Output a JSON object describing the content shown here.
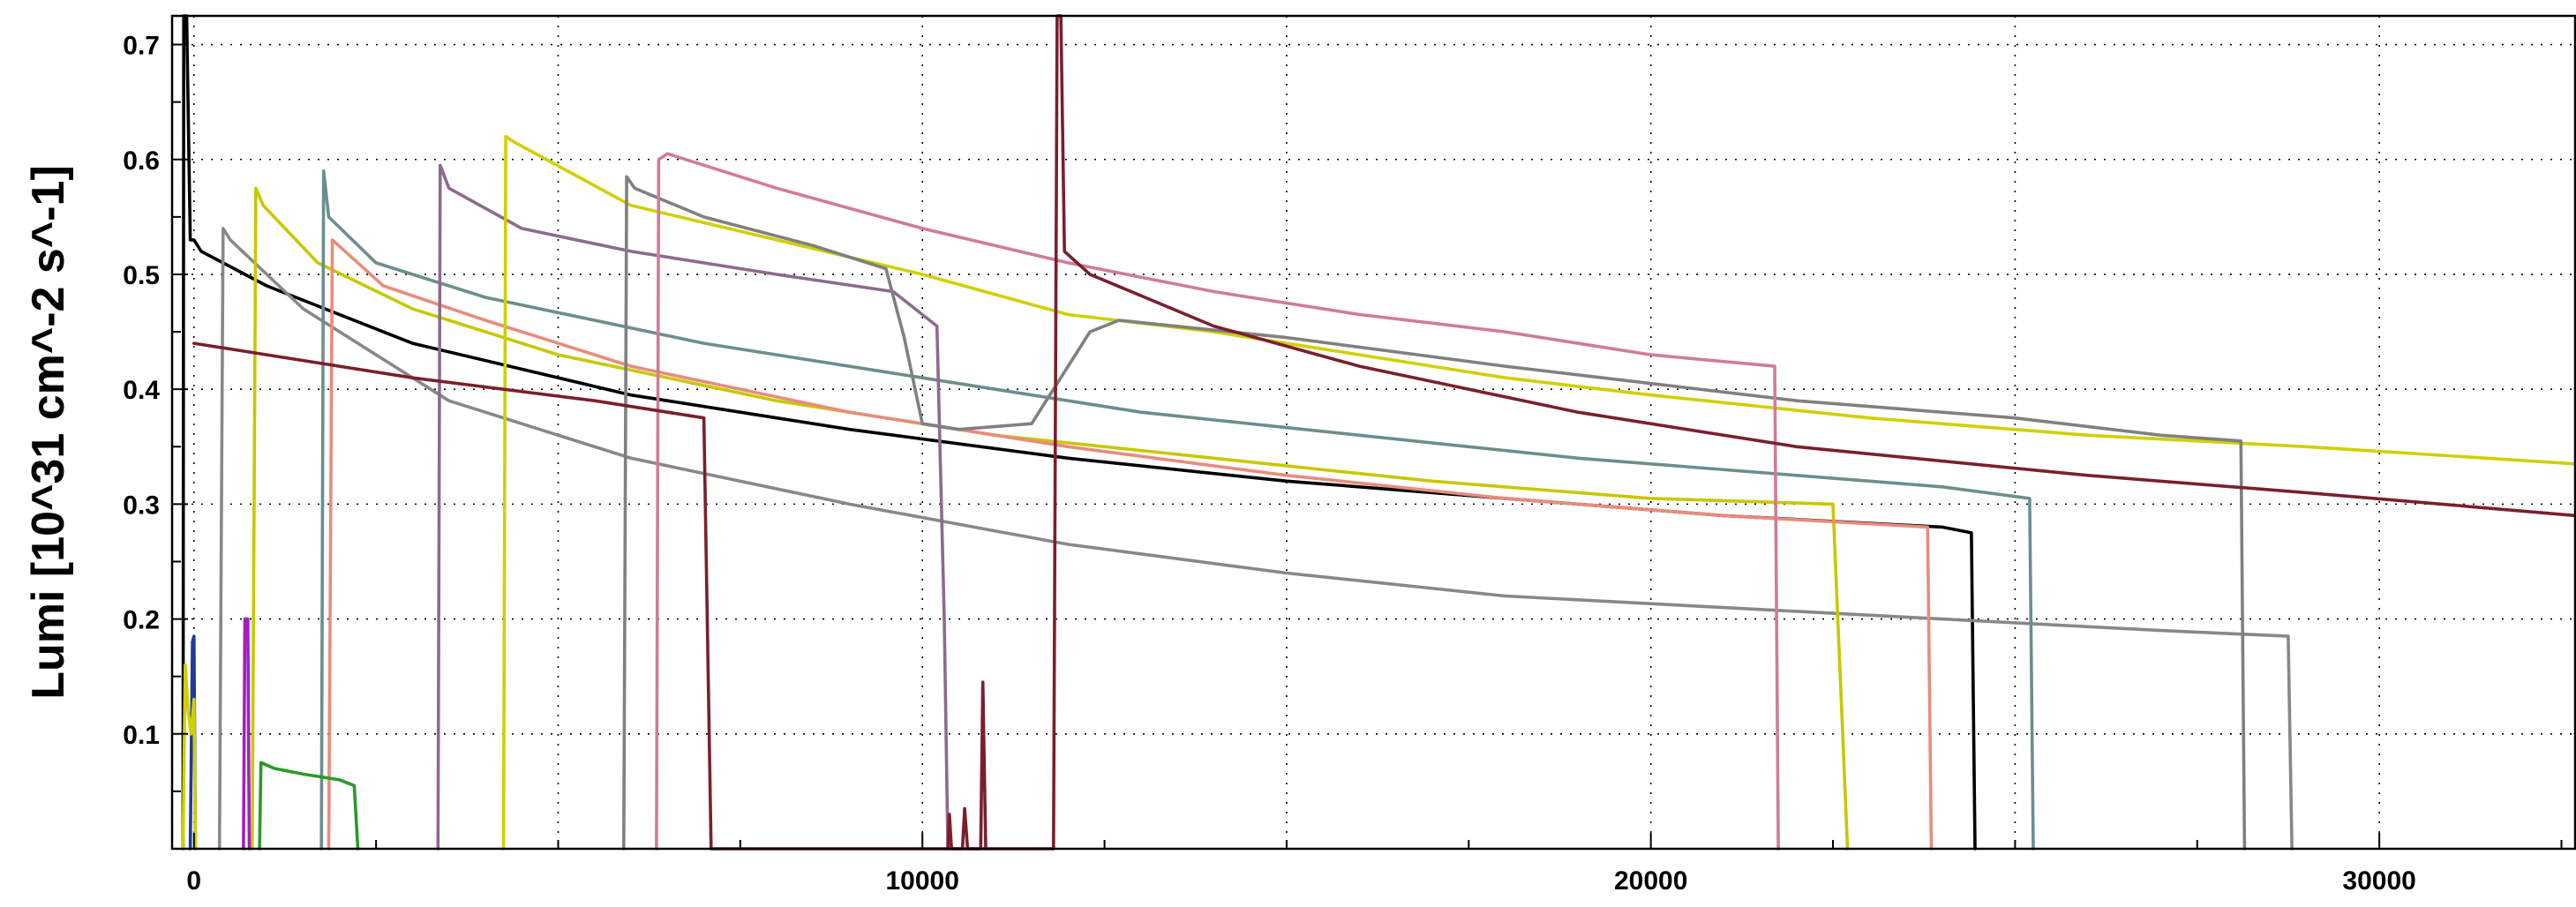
{
  "chart_data": {
    "type": "line",
    "title": "",
    "xlabel": "",
    "ylabel": "Lumi [10^31 cm^-2 s^-1]",
    "xlim": [
      -300,
      32700
    ],
    "ylim": [
      0,
      0.725
    ],
    "grid": true,
    "x_ticks": [
      {
        "value": 0,
        "label": "0"
      },
      {
        "value": 10000,
        "label": "10000"
      },
      {
        "value": 20000,
        "label": "20000"
      },
      {
        "value": 30000,
        "label": "30000"
      }
    ],
    "y_ticks": [
      {
        "value": 0.1,
        "label": "0.1"
      },
      {
        "value": 0.2,
        "label": "0.2"
      },
      {
        "value": 0.3,
        "label": "0.3"
      },
      {
        "value": 0.4,
        "label": "0.4"
      },
      {
        "value": 0.5,
        "label": "0.5"
      },
      {
        "value": 0.6,
        "label": "0.6"
      },
      {
        "value": 0.7,
        "label": "0.7"
      }
    ],
    "series": [
      {
        "color": "#000000",
        "points": [
          [
            -150,
            0
          ],
          [
            -140,
            0.73
          ],
          [
            -100,
            0.73
          ],
          [
            -50,
            0.53
          ],
          [
            0,
            0.53
          ],
          [
            100,
            0.52
          ],
          [
            1000,
            0.49
          ],
          [
            3000,
            0.44
          ],
          [
            6000,
            0.395
          ],
          [
            9000,
            0.365
          ],
          [
            12000,
            0.34
          ],
          [
            15000,
            0.32
          ],
          [
            18000,
            0.305
          ],
          [
            21000,
            0.29
          ],
          [
            24000,
            0.28
          ],
          [
            24400,
            0.275
          ],
          [
            24450,
            0
          ]
        ]
      },
      {
        "color": "#888888",
        "points": [
          [
            350,
            0
          ],
          [
            400,
            0.54
          ],
          [
            500,
            0.53
          ],
          [
            1500,
            0.47
          ],
          [
            3500,
            0.39
          ],
          [
            6000,
            0.34
          ],
          [
            9000,
            0.3
          ],
          [
            12000,
            0.265
          ],
          [
            15000,
            0.24
          ],
          [
            18000,
            0.22
          ],
          [
            21000,
            0.21
          ],
          [
            24000,
            0.2
          ],
          [
            27000,
            0.19
          ],
          [
            28750,
            0.185
          ],
          [
            28800,
            0
          ]
        ]
      },
      {
        "color": "#c8c800",
        "points": [
          [
            800,
            0
          ],
          [
            850,
            0.575
          ],
          [
            950,
            0.56
          ],
          [
            1700,
            0.51
          ],
          [
            3000,
            0.47
          ],
          [
            5000,
            0.43
          ],
          [
            8000,
            0.39
          ],
          [
            11000,
            0.36
          ],
          [
            14000,
            0.34
          ],
          [
            17000,
            0.32
          ],
          [
            20000,
            0.305
          ],
          [
            22500,
            0.3
          ],
          [
            22600,
            0.15
          ],
          [
            22700,
            0
          ]
        ]
      },
      {
        "color": "#6b8e8e",
        "points": [
          [
            1750,
            0
          ],
          [
            1780,
            0.59
          ],
          [
            1850,
            0.55
          ],
          [
            2500,
            0.51
          ],
          [
            4000,
            0.48
          ],
          [
            7000,
            0.44
          ],
          [
            10000,
            0.41
          ],
          [
            13000,
            0.38
          ],
          [
            16000,
            0.36
          ],
          [
            19000,
            0.34
          ],
          [
            22000,
            0.325
          ],
          [
            24000,
            0.315
          ],
          [
            25200,
            0.305
          ],
          [
            25250,
            0
          ]
        ]
      },
      {
        "color": "#e88c7c",
        "points": [
          [
            1850,
            0
          ],
          [
            1900,
            0.53
          ],
          [
            2600,
            0.49
          ],
          [
            4000,
            0.46
          ],
          [
            6000,
            0.42
          ],
          [
            9000,
            0.38
          ],
          [
            12000,
            0.35
          ],
          [
            15000,
            0.325
          ],
          [
            18000,
            0.305
          ],
          [
            21000,
            0.29
          ],
          [
            23800,
            0.28
          ],
          [
            23850,
            0
          ]
        ]
      },
      {
        "color": "#8c6b8c",
        "points": [
          [
            3350,
            0
          ],
          [
            3380,
            0.595
          ],
          [
            3500,
            0.575
          ],
          [
            4500,
            0.54
          ],
          [
            6000,
            0.52
          ],
          [
            8000,
            0.5
          ],
          [
            9600,
            0.485
          ],
          [
            10200,
            0.455
          ],
          [
            10300,
            0.2
          ],
          [
            10350,
            0
          ]
        ]
      },
      {
        "color": "#d0d000",
        "points": [
          [
            4250,
            0
          ],
          [
            4280,
            0.62
          ],
          [
            4400,
            0.615
          ],
          [
            6000,
            0.56
          ],
          [
            8000,
            0.53
          ],
          [
            10000,
            0.5
          ],
          [
            12000,
            0.465
          ],
          [
            14000,
            0.45
          ],
          [
            16000,
            0.43
          ],
          [
            18000,
            0.41
          ],
          [
            20000,
            0.395
          ],
          [
            23000,
            0.375
          ],
          [
            26000,
            0.36
          ],
          [
            29000,
            0.35
          ],
          [
            32700,
            0.335
          ]
        ]
      },
      {
        "color": "#808080",
        "points": [
          [
            5900,
            0
          ],
          [
            5940,
            0.585
          ],
          [
            6050,
            0.575
          ],
          [
            7000,
            0.55
          ],
          [
            8500,
            0.525
          ],
          [
            9500,
            0.505
          ],
          [
            9750,
            0.445
          ],
          [
            10000,
            0.37
          ],
          [
            10500,
            0.365
          ],
          [
            11500,
            0.37
          ],
          [
            11800,
            0.4
          ],
          [
            12300,
            0.45
          ],
          [
            12700,
            0.46
          ],
          [
            15000,
            0.445
          ],
          [
            18000,
            0.42
          ],
          [
            22000,
            0.39
          ],
          [
            25000,
            0.375
          ],
          [
            27000,
            0.36
          ],
          [
            28100,
            0.355
          ],
          [
            28150,
            0
          ]
        ]
      },
      {
        "color": "#d07b9a",
        "points": [
          [
            6350,
            0
          ],
          [
            6380,
            0.6
          ],
          [
            6500,
            0.605
          ],
          [
            8000,
            0.575
          ],
          [
            10000,
            0.54
          ],
          [
            12000,
            0.51
          ],
          [
            14000,
            0.485
          ],
          [
            16000,
            0.465
          ],
          [
            18000,
            0.45
          ],
          [
            20000,
            0.43
          ],
          [
            21700,
            0.42
          ],
          [
            21750,
            0
          ]
        ]
      },
      {
        "color": "#7a1f2e",
        "points": [
          [
            0,
            0.44
          ],
          [
            1000,
            0.43
          ],
          [
            3000,
            0.41
          ],
          [
            5500,
            0.39
          ],
          [
            7000,
            0.375
          ],
          [
            7100,
            0
          ],
          [
            11800,
            0
          ],
          [
            11850,
            0.73
          ],
          [
            11900,
            0.73
          ],
          [
            11950,
            0.52
          ],
          [
            12300,
            0.5
          ],
          [
            14000,
            0.455
          ],
          [
            16000,
            0.42
          ],
          [
            19000,
            0.38
          ],
          [
            22000,
            0.35
          ],
          [
            26000,
            0.325
          ],
          [
            29000,
            0.31
          ],
          [
            32700,
            0.29
          ]
        ]
      },
      {
        "color": "#1f3a9a",
        "points": [
          [
            -50,
            0
          ],
          [
            -20,
            0.18
          ],
          [
            0,
            0.185
          ],
          [
            20,
            0
          ]
        ]
      },
      {
        "color": "#a020c0",
        "points": [
          [
            680,
            0
          ],
          [
            700,
            0.2
          ],
          [
            740,
            0.2
          ],
          [
            760,
            0
          ]
        ]
      },
      {
        "color": "#2a9a2a",
        "points": [
          [
            900,
            0
          ],
          [
            920,
            0.075
          ],
          [
            1100,
            0.07
          ],
          [
            1500,
            0.065
          ],
          [
            2000,
            0.06
          ],
          [
            2200,
            0.055
          ],
          [
            2250,
            0
          ]
        ]
      },
      {
        "color": "#d0d000",
        "points": [
          [
            -150,
            0
          ],
          [
            -120,
            0.16
          ],
          [
            -80,
            0.12
          ],
          [
            -40,
            0.1
          ],
          [
            0,
            0.13
          ],
          [
            20,
            0
          ]
        ]
      },
      {
        "color": "#7a1f2e",
        "points": [
          [
            10350,
            0
          ],
          [
            10370,
            0.03
          ],
          [
            10400,
            0
          ],
          [
            10550,
            0
          ],
          [
            10580,
            0.035
          ],
          [
            10620,
            0
          ],
          [
            10800,
            0
          ],
          [
            10830,
            0.145
          ],
          [
            10870,
            0
          ]
        ]
      }
    ]
  }
}
